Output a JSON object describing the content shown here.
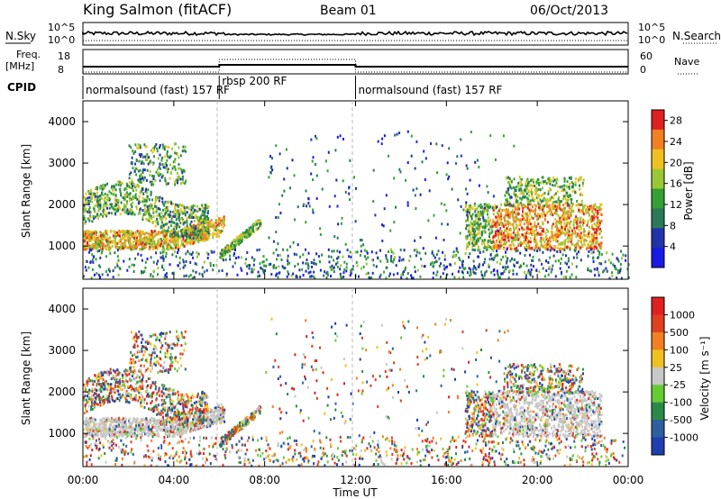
{
  "header": {
    "station": "King Salmon (fitACF)",
    "beam": "Beam 01",
    "date": "06/Oct/2013"
  },
  "strip": {
    "nsky_label": "N.Sky",
    "nsearch_label": "N.Search",
    "nsky_ticks": [
      "10^5",
      "10^0"
    ],
    "nsearch_ticks": [
      "10^5",
      "10^0"
    ],
    "freq_label_1": "Freq.",
    "freq_label_2": "[MHz]",
    "freq_ticks": [
      "18",
      "8"
    ],
    "nave_label": "Nave",
    "nave_ticks": [
      "60",
      "0"
    ],
    "cpid_label": "CPID"
  },
  "cpid_segments": [
    {
      "start_hour": 0,
      "end_hour": 6.0,
      "label": "normalsound (fast) 157 RF"
    },
    {
      "start_hour": 6.0,
      "end_hour": 12.0,
      "label": "rbsp 200 RF"
    },
    {
      "start_hour": 12.0,
      "end_hour": 24,
      "label": "normalsound (fast) 157 RF"
    }
  ],
  "chart_data": [
    {
      "type": "heatmap",
      "panel": "power",
      "ylabel": "Slant Range [km]",
      "xlabel": "",
      "yticks": [
        "1000",
        "2000",
        "3000",
        "4000"
      ],
      "ylim": [
        200,
        4500
      ],
      "xlim_hours": [
        0,
        24
      ],
      "colorbar": {
        "label": "Power [dB]",
        "ticks": [
          "4",
          "8",
          "12",
          "16",
          "20",
          "24",
          "28"
        ],
        "range": [
          0,
          30
        ],
        "colors": [
          "#1a1ae6",
          "#2233aa",
          "#2a7a5a",
          "#33a033",
          "#99c833",
          "#f0c020",
          "#f08020",
          "#e02020"
        ]
      }
    },
    {
      "type": "heatmap",
      "panel": "velocity",
      "ylabel": "Slant Range [km]",
      "xlabel": "Time UT",
      "yticks": [
        "1000",
        "2000",
        "3000",
        "4000"
      ],
      "ylim": [
        200,
        4500
      ],
      "xlim_hours": [
        0,
        24
      ],
      "xticks": [
        "00:00",
        "04:00",
        "08:00",
        "12:00",
        "16:00",
        "20:00",
        "00:00"
      ],
      "colorbar": {
        "label": "Velocity [m s⁻¹]",
        "ticks": [
          "1000",
          "500",
          "100",
          "25",
          "-25",
          "-100",
          "-500",
          "-1000"
        ],
        "colors": [
          "#1f3fb0",
          "#2f5fa0",
          "#2a8a4a",
          "#66cc33",
          "#c8c8c8",
          "#f0c020",
          "#f08020",
          "#e04020",
          "#e02020"
        ]
      }
    }
  ]
}
